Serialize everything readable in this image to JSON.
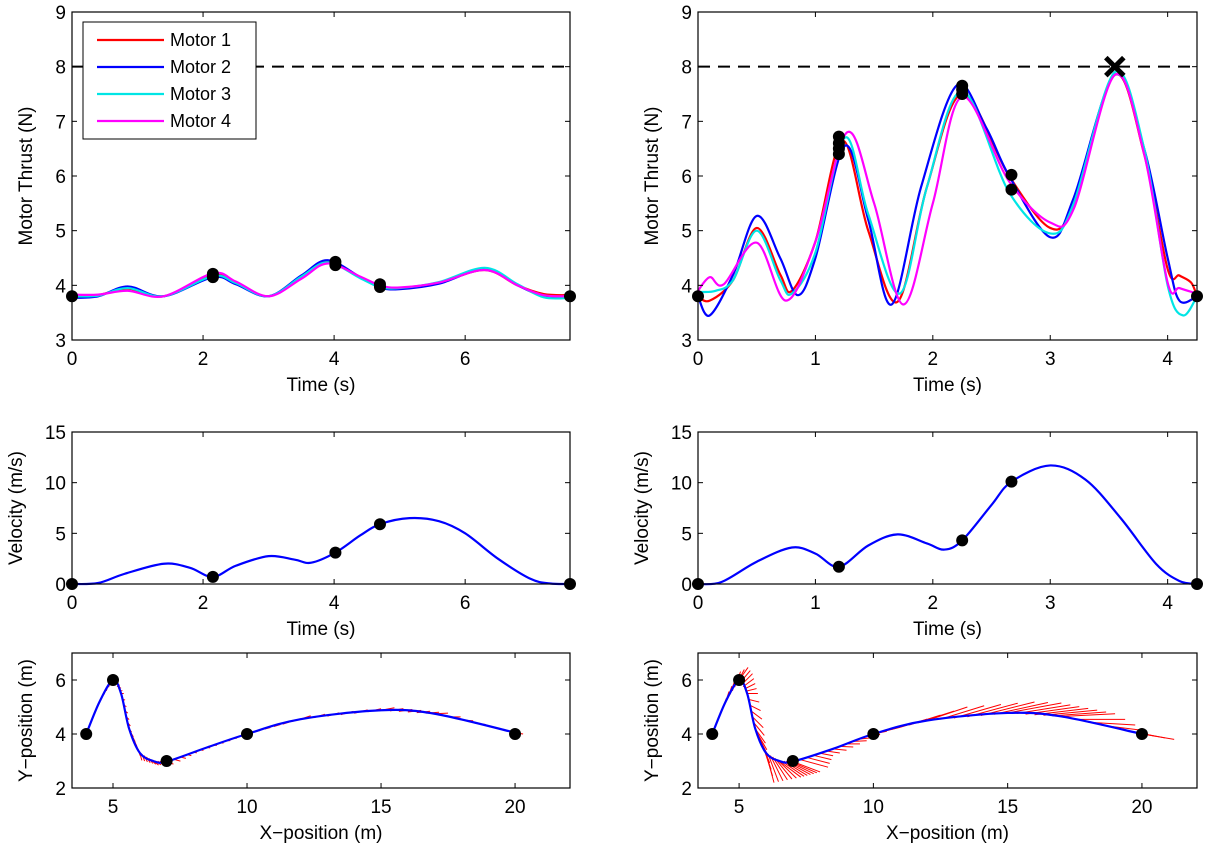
{
  "chart_data": [
    {
      "id": "thrust_left",
      "type": "line",
      "xlabel": "Time (s)",
      "ylabel": "Motor Thrust (N)",
      "xlim": [
        0,
        7.6
      ],
      "ylim": [
        3,
        9
      ],
      "xticks": [
        0,
        2,
        4,
        6
      ],
      "yticks": [
        3,
        4,
        5,
        6,
        7,
        8,
        9
      ],
      "limit_line": {
        "y": 8,
        "style": "dashed",
        "color": "#000000"
      },
      "legend": {
        "placement": "top-left",
        "entries": [
          "Motor 1",
          "Motor 2",
          "Motor 3",
          "Motor 4"
        ]
      },
      "series": [
        {
          "name": "Motor 1",
          "color": "#ff0000",
          "x": [
            0,
            0.4,
            0.85,
            1.4,
            2.15,
            2.5,
            3.0,
            3.5,
            3.9,
            4.4,
            4.7,
            5.0,
            5.6,
            6.3,
            6.8,
            7.2,
            7.6
          ],
          "y": [
            3.8,
            3.82,
            3.94,
            3.8,
            4.18,
            4.05,
            3.8,
            4.15,
            4.43,
            4.15,
            3.99,
            3.95,
            4.05,
            4.28,
            4.0,
            3.84,
            3.82
          ]
        },
        {
          "name": "Motor 2",
          "color": "#0000ff",
          "x": [
            0,
            0.4,
            0.85,
            1.4,
            2.15,
            2.5,
            3.0,
            3.5,
            3.9,
            4.4,
            4.7,
            5.0,
            5.6,
            6.3,
            6.8,
            7.2,
            7.6
          ],
          "y": [
            3.77,
            3.8,
            3.98,
            3.8,
            4.15,
            4.02,
            3.8,
            4.18,
            4.46,
            4.15,
            3.96,
            3.93,
            4.03,
            4.3,
            4.0,
            3.8,
            3.8
          ]
        },
        {
          "name": "Motor 3",
          "color": "#00e5e5",
          "x": [
            0,
            0.4,
            0.85,
            1.4,
            2.15,
            2.5,
            3.0,
            3.5,
            3.9,
            4.4,
            4.7,
            5.0,
            5.6,
            6.3,
            6.8,
            7.2,
            7.6
          ],
          "y": [
            3.8,
            3.81,
            3.95,
            3.8,
            4.17,
            4.04,
            3.8,
            4.16,
            4.42,
            4.13,
            3.97,
            3.95,
            4.06,
            4.32,
            4.02,
            3.78,
            3.77
          ]
        },
        {
          "name": "Motor 4",
          "color": "#ff00ff",
          "x": [
            0,
            0.4,
            0.85,
            1.4,
            2.15,
            2.5,
            3.0,
            3.5,
            3.9,
            4.4,
            4.7,
            5.0,
            5.6,
            6.3,
            6.8,
            7.2,
            7.6
          ],
          "y": [
            3.83,
            3.83,
            3.9,
            3.8,
            4.22,
            4.07,
            3.8,
            4.12,
            4.4,
            4.16,
            4.0,
            3.96,
            4.05,
            4.28,
            4.0,
            3.82,
            3.8
          ]
        }
      ],
      "waypoints": [
        [
          0,
          3.8
        ],
        [
          2.15,
          4.21
        ],
        [
          2.15,
          4.15
        ],
        [
          4.02,
          4.43
        ],
        [
          4.02,
          4.37
        ],
        [
          4.7,
          4.02
        ],
        [
          4.7,
          3.97
        ],
        [
          7.6,
          3.8
        ]
      ]
    },
    {
      "id": "thrust_right",
      "type": "line",
      "xlabel": "Time (s)",
      "ylabel": "Motor Thrust (N)",
      "xlim": [
        0,
        4.25
      ],
      "ylim": [
        3,
        9
      ],
      "xticks": [
        0,
        1,
        2,
        3,
        4
      ],
      "yticks": [
        3,
        4,
        5,
        6,
        7,
        8,
        9
      ],
      "limit_line": {
        "y": 8,
        "style": "dashed",
        "color": "#000000"
      },
      "series": [
        {
          "name": "Motor 1",
          "color": "#ff0000",
          "x": [
            0,
            0.1,
            0.3,
            0.5,
            0.7,
            0.8,
            1.0,
            1.23,
            1.45,
            1.7,
            1.95,
            2.25,
            2.65,
            3.0,
            3.2,
            3.55,
            3.8,
            4.0,
            4.1,
            4.2,
            4.25
          ],
          "y": [
            3.8,
            3.72,
            4.1,
            5.05,
            4.2,
            3.9,
            4.8,
            6.65,
            5.0,
            3.7,
            5.8,
            7.5,
            6.0,
            5.05,
            5.5,
            7.85,
            6.4,
            4.3,
            4.18,
            4.05,
            3.8
          ]
        },
        {
          "name": "Motor 2",
          "color": "#0000ff",
          "x": [
            0,
            0.1,
            0.3,
            0.5,
            0.7,
            0.85,
            1.0,
            1.25,
            1.45,
            1.65,
            1.9,
            2.2,
            2.45,
            2.65,
            3.0,
            3.2,
            3.55,
            3.8,
            4.0,
            4.1,
            4.25
          ],
          "y": [
            3.8,
            3.45,
            4.2,
            5.27,
            4.5,
            3.82,
            4.5,
            6.55,
            5.2,
            3.65,
            5.8,
            7.65,
            6.9,
            6.0,
            4.88,
            5.6,
            7.85,
            6.5,
            4.5,
            3.72,
            3.8
          ]
        },
        {
          "name": "Motor 3",
          "color": "#00e5e5",
          "x": [
            0,
            0.15,
            0.3,
            0.5,
            0.7,
            0.8,
            1.0,
            1.25,
            1.45,
            1.72,
            1.95,
            2.25,
            2.65,
            3.0,
            3.2,
            3.55,
            3.8,
            4.0,
            4.13,
            4.25
          ],
          "y": [
            3.88,
            3.9,
            4.1,
            5.0,
            4.1,
            3.85,
            4.6,
            6.7,
            5.3,
            3.85,
            5.8,
            7.55,
            5.7,
            4.95,
            5.5,
            7.9,
            6.5,
            4.0,
            3.45,
            3.8
          ]
        },
        {
          "name": "Motor 4",
          "color": "#ff00ff",
          "x": [
            0,
            0.1,
            0.22,
            0.5,
            0.75,
            1.0,
            1.27,
            1.5,
            1.75,
            2.0,
            2.25,
            2.65,
            3.0,
            3.2,
            3.55,
            3.8,
            4.0,
            4.1,
            4.25
          ],
          "y": [
            3.9,
            4.15,
            4.02,
            4.78,
            3.72,
            4.8,
            6.8,
            5.5,
            3.65,
            5.5,
            7.45,
            5.9,
            5.15,
            5.4,
            7.85,
            6.4,
            4.05,
            3.95,
            3.85
          ]
        }
      ],
      "waypoints": [
        [
          0,
          3.8
        ],
        [
          1.2,
          6.72
        ],
        [
          1.2,
          6.6
        ],
        [
          1.2,
          6.5
        ],
        [
          1.2,
          6.4
        ],
        [
          2.25,
          7.65
        ],
        [
          2.25,
          7.58
        ],
        [
          2.25,
          7.5
        ],
        [
          2.67,
          6.02
        ],
        [
          2.67,
          5.75
        ],
        [
          4.25,
          3.8
        ]
      ],
      "limit_violation": [
        3.55,
        8
      ]
    },
    {
      "id": "velocity_left",
      "type": "line",
      "xlabel": "Time (s)",
      "ylabel": "Velocity (m/s)",
      "xlim": [
        0,
        7.6
      ],
      "ylim": [
        0,
        15
      ],
      "xticks": [
        0,
        2,
        4,
        6
      ],
      "yticks": [
        0,
        5,
        10,
        15
      ],
      "series": [
        {
          "name": "Velocity",
          "color": "#0000ff",
          "x": [
            0,
            0.4,
            0.8,
            1.4,
            1.8,
            2.15,
            2.5,
            3.0,
            3.4,
            3.65,
            4.02,
            4.4,
            4.7,
            5.15,
            5.6,
            6.0,
            6.5,
            7.0,
            7.3,
            7.6
          ],
          "y": [
            0,
            0.1,
            1.0,
            2.0,
            1.6,
            0.7,
            1.8,
            2.75,
            2.4,
            2.1,
            3.1,
            4.8,
            5.9,
            6.5,
            6.2,
            5.0,
            2.5,
            0.5,
            0.05,
            0
          ]
        }
      ],
      "waypoints": [
        [
          0,
          0
        ],
        [
          2.15,
          0.7
        ],
        [
          4.02,
          3.1
        ],
        [
          4.7,
          5.9
        ],
        [
          7.6,
          0
        ]
      ]
    },
    {
      "id": "velocity_right",
      "type": "line",
      "xlabel": "Time (s)",
      "ylabel": "Velocity (m/s)",
      "xlim": [
        0,
        4.25
      ],
      "ylim": [
        0,
        15
      ],
      "xticks": [
        0,
        1,
        2,
        3,
        4
      ],
      "yticks": [
        0,
        5,
        10,
        15
      ],
      "series": [
        {
          "name": "Velocity",
          "color": "#0000ff",
          "x": [
            0,
            0.2,
            0.5,
            0.8,
            1.0,
            1.2,
            1.45,
            1.7,
            1.95,
            2.1,
            2.25,
            2.5,
            2.67,
            3.0,
            3.3,
            3.6,
            3.9,
            4.1,
            4.25
          ],
          "y": [
            0,
            0.2,
            2.2,
            3.6,
            3.0,
            1.7,
            3.8,
            4.9,
            4.0,
            3.4,
            4.3,
            7.8,
            10.1,
            11.7,
            10.3,
            6.5,
            2.0,
            0.3,
            0
          ]
        }
      ],
      "waypoints": [
        [
          0,
          0
        ],
        [
          1.2,
          1.7
        ],
        [
          2.25,
          4.3
        ],
        [
          2.67,
          10.1
        ],
        [
          4.25,
          0
        ]
      ]
    },
    {
      "id": "path_left",
      "type": "line",
      "xlabel": "X−position (m)",
      "ylabel": "Y−position (m)",
      "xlim": [
        3.47,
        22.05
      ],
      "ylim": [
        2,
        7
      ],
      "xticks": [
        5,
        10,
        15,
        20
      ],
      "yticks": [
        2,
        4,
        6
      ],
      "series": [
        {
          "name": "Path",
          "color": "#0000ff",
          "x": [
            4,
            4.5,
            5,
            5.3,
            5.6,
            6.0,
            6.5,
            7,
            8.5,
            10,
            12,
            15,
            17,
            20
          ],
          "y": [
            4,
            5.2,
            6,
            5.5,
            4.2,
            3.3,
            3.0,
            2.98,
            3.5,
            4.0,
            4.55,
            4.88,
            4.75,
            4.05
          ]
        }
      ],
      "thrust_vectors": {
        "color": "#ff0000",
        "scale": 0.25,
        "anchors_x": [
          4.0,
          4.8,
          5.1,
          5.5,
          6.0,
          6.5,
          7.2,
          8.0,
          10,
          12,
          14,
          17,
          19,
          20
        ],
        "dx": [
          0,
          0.2,
          0.4,
          0.4,
          0.3,
          0.8,
          1.1,
          0.5,
          0.5,
          1.5,
          2,
          2,
          1.5,
          1.2
        ],
        "dy": [
          0,
          0.6,
          0.4,
          -0.4,
          -1.1,
          -0.6,
          -0.3,
          -0.1,
          0.1,
          0.5,
          0.5,
          0.1,
          -0.3,
          -0.2
        ]
      },
      "waypoints": [
        [
          4,
          4
        ],
        [
          5,
          6
        ],
        [
          7,
          3
        ],
        [
          10,
          4
        ],
        [
          20,
          4
        ]
      ]
    },
    {
      "id": "path_right",
      "type": "line",
      "xlabel": "X−position (m)",
      "ylabel": "Y−position (m)",
      "xlim": [
        3.47,
        22.05
      ],
      "ylim": [
        2,
        7
      ],
      "xticks": [
        5,
        10,
        15,
        20
      ],
      "yticks": [
        2,
        4,
        6
      ],
      "series": [
        {
          "name": "Path",
          "color": "#0000ff",
          "x": [
            4,
            4.5,
            5,
            5.3,
            5.6,
            6.0,
            6.5,
            7,
            8.5,
            10,
            12,
            15,
            17,
            20
          ],
          "y": [
            4,
            5.2,
            6,
            5.5,
            4.2,
            3.3,
            3.0,
            2.98,
            3.45,
            4.0,
            4.5,
            4.78,
            4.65,
            4.0
          ]
        }
      ],
      "thrust_vectors": {
        "color": "#ff0000",
        "scale": 1.0,
        "anchors_x": [
          4.0,
          4.8,
          5.1,
          5.5,
          6.0,
          6.5,
          7.2,
          8.0,
          10,
          12,
          14,
          17,
          19,
          20
        ],
        "dx": [
          0,
          0.2,
          0.4,
          0.4,
          0.3,
          0.8,
          1.1,
          0.5,
          0.5,
          1.5,
          2,
          2,
          1.5,
          1.2
        ],
        "dy": [
          0,
          0.6,
          0.4,
          -0.4,
          -1.1,
          -0.6,
          -0.3,
          -0.1,
          0.1,
          0.5,
          0.5,
          0.1,
          -0.3,
          -0.2
        ]
      },
      "waypoints": [
        [
          4,
          4
        ],
        [
          5,
          6
        ],
        [
          7,
          3
        ],
        [
          10,
          4
        ],
        [
          20,
          4
        ]
      ]
    }
  ]
}
